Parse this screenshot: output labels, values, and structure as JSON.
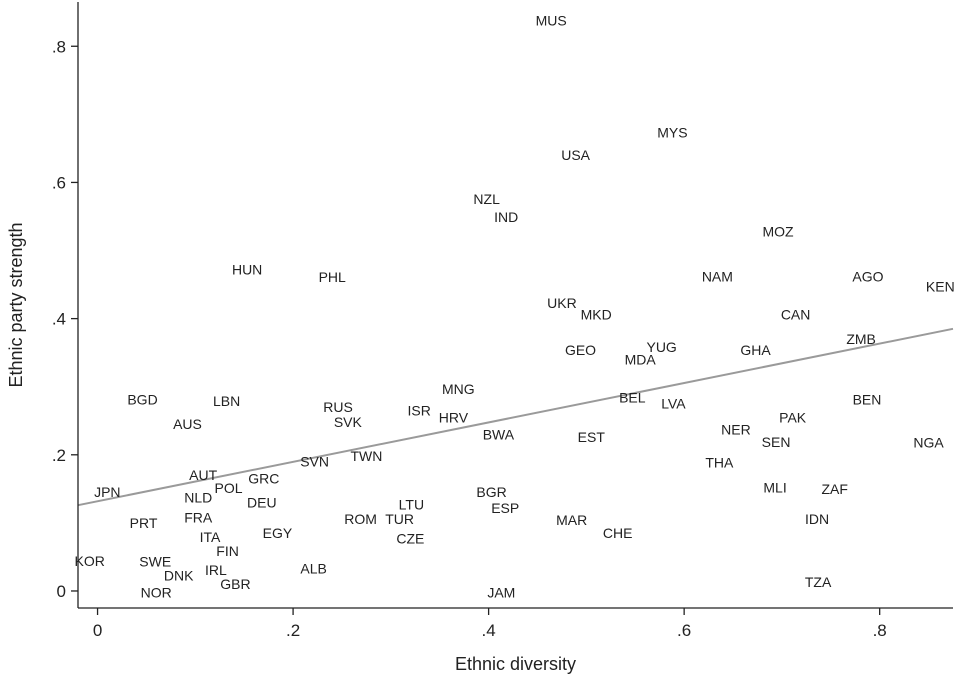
{
  "chart_data": {
    "type": "scatter",
    "xlabel": "Ethnic diversity",
    "ylabel": "Ethnic party strength",
    "xlim": [
      -0.02,
      0.875
    ],
    "ylim": [
      -0.025,
      0.865
    ],
    "x_ticks": [
      0,
      0.2,
      0.4,
      0.6,
      0.8
    ],
    "x_tick_labels": [
      "0",
      ".2",
      ".4",
      ".6",
      ".8"
    ],
    "y_ticks": [
      0,
      0.2,
      0.4,
      0.6,
      0.8
    ],
    "y_tick_labels": [
      "0",
      ".2",
      ".4",
      ".6",
      ".8"
    ],
    "grid": false,
    "marker": "text-label",
    "fit_line": {
      "x": [
        -0.02,
        0.875
      ],
      "y": [
        0.126,
        0.385
      ]
    },
    "points": [
      {
        "label": "MUS",
        "x": 0.464,
        "y": 0.838
      },
      {
        "label": "MYS",
        "x": 0.588,
        "y": 0.673
      },
      {
        "label": "USA",
        "x": 0.489,
        "y": 0.64
      },
      {
        "label": "NZL",
        "x": 0.398,
        "y": 0.576
      },
      {
        "label": "IND",
        "x": 0.418,
        "y": 0.549
      },
      {
        "label": "MOZ",
        "x": 0.696,
        "y": 0.528
      },
      {
        "label": "HUN",
        "x": 0.153,
        "y": 0.472
      },
      {
        "label": "PHL",
        "x": 0.24,
        "y": 0.461
      },
      {
        "label": "NAM",
        "x": 0.634,
        "y": 0.462
      },
      {
        "label": "AGO",
        "x": 0.788,
        "y": 0.462
      },
      {
        "label": "KEN",
        "x": 0.862,
        "y": 0.447
      },
      {
        "label": "UKR",
        "x": 0.475,
        "y": 0.423
      },
      {
        "label": "MKD",
        "x": 0.51,
        "y": 0.406
      },
      {
        "label": "CAN",
        "x": 0.714,
        "y": 0.406
      },
      {
        "label": "ZMB",
        "x": 0.781,
        "y": 0.37
      },
      {
        "label": "GEO",
        "x": 0.494,
        "y": 0.354
      },
      {
        "label": "YUG",
        "x": 0.577,
        "y": 0.358
      },
      {
        "label": "MDA",
        "x": 0.555,
        "y": 0.34
      },
      {
        "label": "GHA",
        "x": 0.673,
        "y": 0.354
      },
      {
        "label": "MNG",
        "x": 0.369,
        "y": 0.297
      },
      {
        "label": "BEL",
        "x": 0.547,
        "y": 0.284
      },
      {
        "label": "LVA",
        "x": 0.589,
        "y": 0.275
      },
      {
        "label": "BEN",
        "x": 0.787,
        "y": 0.281
      },
      {
        "label": "BGD",
        "x": 0.046,
        "y": 0.281
      },
      {
        "label": "LBN",
        "x": 0.132,
        "y": 0.279
      },
      {
        "label": "RUS",
        "x": 0.246,
        "y": 0.27
      },
      {
        "label": "ISR",
        "x": 0.329,
        "y": 0.265
      },
      {
        "label": "SVK",
        "x": 0.256,
        "y": 0.248
      },
      {
        "label": "AUS",
        "x": 0.092,
        "y": 0.245
      },
      {
        "label": "HRV",
        "x": 0.364,
        "y": 0.255
      },
      {
        "label": "PAK",
        "x": 0.711,
        "y": 0.255
      },
      {
        "label": "NER",
        "x": 0.653,
        "y": 0.237
      },
      {
        "label": "BWA",
        "x": 0.41,
        "y": 0.23
      },
      {
        "label": "EST",
        "x": 0.505,
        "y": 0.226
      },
      {
        "label": "SEN",
        "x": 0.694,
        "y": 0.219
      },
      {
        "label": "NGA",
        "x": 0.85,
        "y": 0.218
      },
      {
        "label": "TWN",
        "x": 0.275,
        "y": 0.198
      },
      {
        "label": "THA",
        "x": 0.636,
        "y": 0.189
      },
      {
        "label": "SVN",
        "x": 0.222,
        "y": 0.19
      },
      {
        "label": "AUT",
        "x": 0.108,
        "y": 0.17
      },
      {
        "label": "GRC",
        "x": 0.17,
        "y": 0.165
      },
      {
        "label": "POL",
        "x": 0.134,
        "y": 0.151
      },
      {
        "label": "MLI",
        "x": 0.693,
        "y": 0.152
      },
      {
        "label": "ZAF",
        "x": 0.754,
        "y": 0.15
      },
      {
        "label": "JPN",
        "x": 0.01,
        "y": 0.145
      },
      {
        "label": "BGR",
        "x": 0.403,
        "y": 0.145
      },
      {
        "label": "NLD",
        "x": 0.103,
        "y": 0.137
      },
      {
        "label": "DEU",
        "x": 0.168,
        "y": 0.13
      },
      {
        "label": "LTU",
        "x": 0.321,
        "y": 0.127
      },
      {
        "label": "ESP",
        "x": 0.417,
        "y": 0.122
      },
      {
        "label": "FRA",
        "x": 0.103,
        "y": 0.108
      },
      {
        "label": "ROM",
        "x": 0.269,
        "y": 0.106
      },
      {
        "label": "TUR",
        "x": 0.309,
        "y": 0.106
      },
      {
        "label": "MAR",
        "x": 0.485,
        "y": 0.104
      },
      {
        "label": "IDN",
        "x": 0.736,
        "y": 0.106
      },
      {
        "label": "PRT",
        "x": 0.047,
        "y": 0.1
      },
      {
        "label": "EGY",
        "x": 0.184,
        "y": 0.085
      },
      {
        "label": "CHE",
        "x": 0.532,
        "y": 0.085
      },
      {
        "label": "ITA",
        "x": 0.115,
        "y": 0.079
      },
      {
        "label": "CZE",
        "x": 0.32,
        "y": 0.077
      },
      {
        "label": "FIN",
        "x": 0.133,
        "y": 0.059
      },
      {
        "label": "KOR",
        "x": -0.008,
        "y": 0.044
      },
      {
        "label": "SWE",
        "x": 0.059,
        "y": 0.043
      },
      {
        "label": "ALB",
        "x": 0.221,
        "y": 0.033
      },
      {
        "label": "IRL",
        "x": 0.121,
        "y": 0.031
      },
      {
        "label": "DNK",
        "x": 0.083,
        "y": 0.023
      },
      {
        "label": "TZA",
        "x": 0.737,
        "y": 0.013
      },
      {
        "label": "GBR",
        "x": 0.141,
        "y": 0.01
      },
      {
        "label": "NOR",
        "x": 0.06,
        "y": -0.002
      },
      {
        "label": "JAM",
        "x": 0.413,
        "y": -0.002
      }
    ]
  }
}
